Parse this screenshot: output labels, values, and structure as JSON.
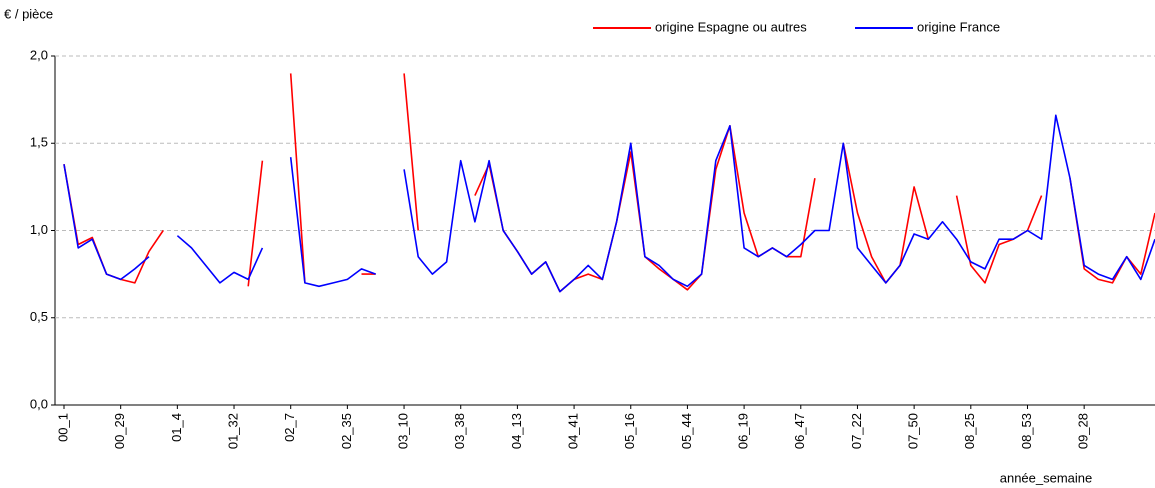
{
  "chart_data": {
    "type": "line",
    "y_axis_label": "€ / pièce",
    "x_axis_label": "année_semaine",
    "categories": [
      "00_1",
      null,
      null,
      null,
      "00_29",
      null,
      null,
      null,
      "01_4",
      null,
      null,
      null,
      "01_32",
      null,
      null,
      null,
      "02_7",
      null,
      null,
      null,
      "02_35",
      null,
      null,
      null,
      "03_10",
      null,
      null,
      null,
      "03_38",
      null,
      null,
      null,
      "04_13",
      null,
      null,
      null,
      "04_41",
      null,
      null,
      null,
      "05_16",
      null,
      null,
      null,
      "05_44",
      null,
      null,
      null,
      "06_19",
      null,
      null,
      null,
      "06_47",
      null,
      null,
      null,
      "07_22",
      null,
      null,
      null,
      "07_50",
      null,
      null,
      null,
      "08_25",
      null,
      null,
      null,
      "08_53",
      null,
      null,
      null,
      "09_28",
      null,
      null,
      null,
      null,
      null
    ],
    "series": [
      {
        "name": "origine Espagne ou autres",
        "color": "#ff0000",
        "values": [
          1.38,
          0.92,
          0.96,
          0.75,
          0.72,
          0.7,
          0.88,
          1.0,
          null,
          0.95,
          null,
          null,
          null,
          0.68,
          1.4,
          null,
          1.9,
          0.7,
          null,
          null,
          null,
          0.75,
          0.75,
          null,
          1.9,
          1.0,
          null,
          null,
          null,
          1.2,
          1.38,
          1.0,
          0.88,
          0.75,
          0.82,
          0.65,
          0.72,
          0.75,
          0.72,
          1.05,
          1.45,
          0.85,
          0.78,
          0.72,
          0.66,
          0.75,
          1.35,
          1.6,
          1.1,
          0.85,
          0.9,
          0.85,
          0.85,
          1.3,
          null,
          1.5,
          1.1,
          0.85,
          0.7,
          0.8,
          1.25,
          0.95,
          null,
          1.2,
          0.8,
          0.7,
          0.92,
          0.95,
          1.0,
          1.2,
          null,
          1.3,
          0.78,
          0.72,
          0.7,
          0.85,
          0.75,
          1.1
        ]
      },
      {
        "name": "origine France",
        "color": "#0000ff",
        "values": [
          1.38,
          0.9,
          0.95,
          0.75,
          0.72,
          0.78,
          0.85,
          null,
          0.97,
          0.9,
          0.8,
          0.7,
          0.76,
          0.72,
          0.9,
          null,
          1.42,
          0.7,
          0.68,
          0.7,
          0.72,
          0.78,
          0.75,
          null,
          1.35,
          0.85,
          0.75,
          0.82,
          1.4,
          1.05,
          1.4,
          1.0,
          0.88,
          0.75,
          0.82,
          0.65,
          0.72,
          0.8,
          0.72,
          1.05,
          1.5,
          0.85,
          0.8,
          0.72,
          0.68,
          0.75,
          1.4,
          1.6,
          0.9,
          0.85,
          0.9,
          0.85,
          0.92,
          1.0,
          1.0,
          1.5,
          0.9,
          0.8,
          0.7,
          0.8,
          0.98,
          0.95,
          1.05,
          0.95,
          0.82,
          0.78,
          0.95,
          0.95,
          1.0,
          0.95,
          1.66,
          1.3,
          0.8,
          0.75,
          0.72,
          0.85,
          0.72,
          0.95
        ]
      }
    ],
    "ylim": [
      0,
      2
    ],
    "yticks": [
      {
        "value": 0,
        "label": "0,0"
      },
      {
        "value": 0.5,
        "label": "0,5"
      },
      {
        "value": 1,
        "label": "1,0"
      },
      {
        "value": 1.5,
        "label": "1,5"
      },
      {
        "value": 2,
        "label": "2,0"
      }
    ],
    "grid": true,
    "legend": "top-right"
  }
}
